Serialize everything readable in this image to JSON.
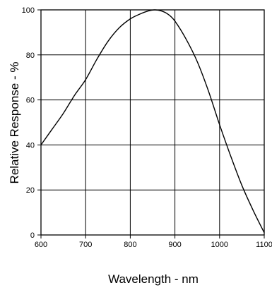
{
  "chart_data": {
    "type": "line",
    "title": "",
    "xlabel": "Wavelength - nm",
    "ylabel": "Relative Response - %",
    "xlim": [
      600,
      1100
    ],
    "ylim": [
      0,
      100
    ],
    "x_ticks": [
      600,
      700,
      800,
      900,
      1000,
      1100
    ],
    "y_ticks": [
      0,
      20,
      40,
      60,
      80,
      100
    ],
    "x_tick_labels": [
      "600",
      "700",
      "800",
      "900",
      "1000",
      "1100"
    ],
    "y_tick_labels": [
      "0",
      "20",
      "40",
      "60",
      "80",
      "100"
    ],
    "grid": true,
    "legend": "none",
    "line_color": "#000000",
    "series": [
      {
        "x": [
          600,
          625,
          650,
          675,
          700,
          725,
          750,
          775,
          800,
          820,
          840,
          855,
          870,
          885,
          900,
          925,
          950,
          975,
          1000,
          1025,
          1050,
          1075,
          1100
        ],
        "y": [
          40,
          47,
          54,
          62,
          69,
          78,
          86,
          92,
          96,
          98,
          99.5,
          100,
          99.5,
          98,
          95,
          87,
          77,
          64,
          49,
          35,
          22,
          11,
          1
        ]
      }
    ]
  }
}
